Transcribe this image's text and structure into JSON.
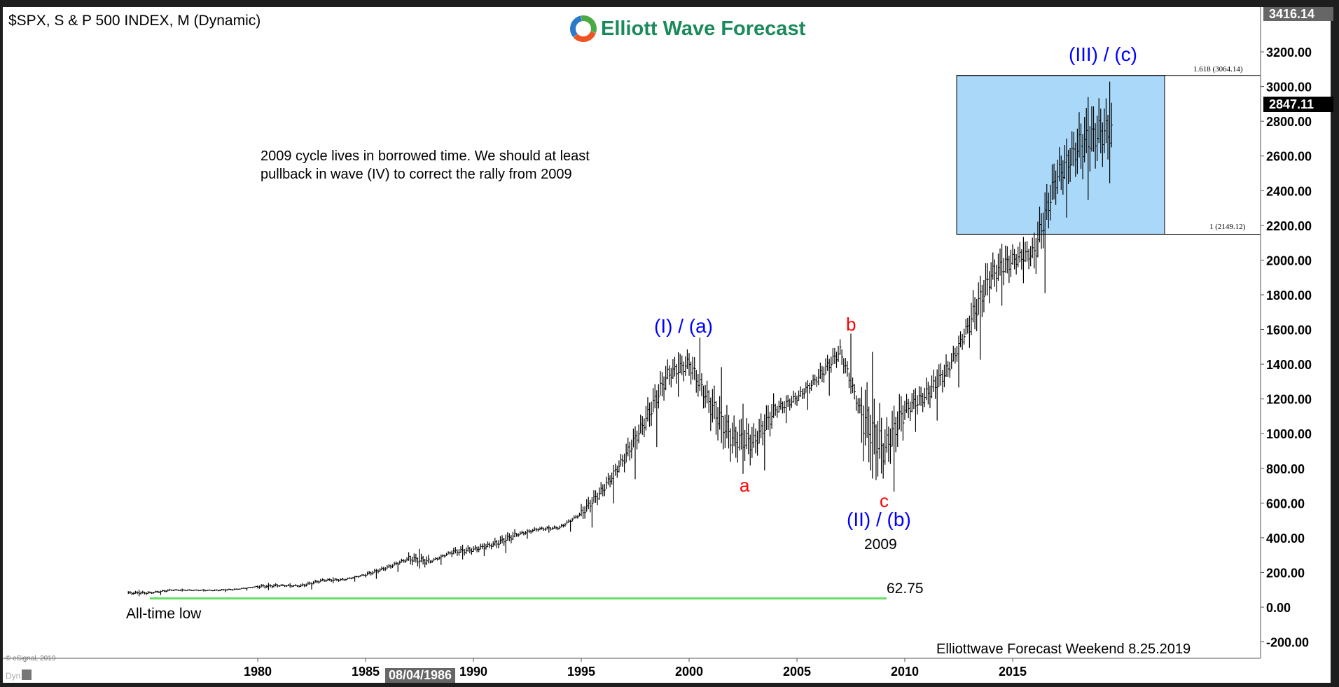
{
  "header": {
    "title": "$SPX, S & P 500 INDEX, M (Dynamic)",
    "logo_text": "Elliott Wave Forecast"
  },
  "footer": {
    "copyright": "© eSignal, 2019",
    "dyn_label": "Dyn",
    "signature": "Elliottwave Forecast Weekend  8.25.2019",
    "cursor_date": "08/04/1986"
  },
  "annotations": {
    "note_line1": "2009 cycle lives in borrowed time. We should at least",
    "note_line2": "pullback in wave (IV) to correct the rally from 2009",
    "wave_I": "(I) / (a)",
    "wave_a": "a",
    "wave_b": "b",
    "wave_c": "c",
    "wave_II": "(II) / (b)",
    "year_2009": "2009",
    "wave_III": "(III) / (c)",
    "low_value": "62.75",
    "low_label": "All-time low",
    "fib_1618": "1.618 (3064.14)",
    "fib_1": "1 (2149.12)"
  },
  "colors": {
    "wave_blue": "#0000ff",
    "wave_red": "#ff0000",
    "target_box": "#aad8f8",
    "low_line": "#66dd66",
    "logo_green": "#1a8a5a"
  },
  "chart_data": {
    "type": "bar",
    "subtype": "ohlc-monthly",
    "symbol": "$SPX",
    "ylim": [
      -200,
      3416.14
    ],
    "yticks": [
      "3200.00",
      "3000.00",
      "2800.00",
      "2600.00",
      "2400.00",
      "2200.00",
      "2000.00",
      "1800.00",
      "1600.00",
      "1400.00",
      "1200.00",
      "1000.00",
      "800.00",
      "600.00",
      "400.00",
      "200.00",
      "0.00",
      "-200.00"
    ],
    "xticks": [
      "1980",
      "1985",
      "1990",
      "1995",
      "2000",
      "2005",
      "2010",
      "2015"
    ],
    "axis_max_label": "3416.14",
    "last_price": "2847.11",
    "target_zone": {
      "low": 2149.12,
      "high": 3064.14
    },
    "all_time_low": 62.75,
    "yearly_ranges": [
      [
        1974,
        62.75,
        100
      ],
      [
        1975,
        70,
        95
      ],
      [
        1976,
        90,
        107
      ],
      [
        1977,
        90,
        105
      ],
      [
        1978,
        87,
        106
      ],
      [
        1979,
        96,
        110
      ],
      [
        1980,
        98,
        140
      ],
      [
        1981,
        112,
        138
      ],
      [
        1982,
        102,
        143
      ],
      [
        1983,
        138,
        172
      ],
      [
        1984,
        147,
        170
      ],
      [
        1985,
        163,
        212
      ],
      [
        1986,
        203,
        254
      ],
      [
        1987,
        223,
        336
      ],
      [
        1988,
        243,
        283
      ],
      [
        1989,
        275,
        360
      ],
      [
        1990,
        295,
        369
      ],
      [
        1991,
        311,
        418
      ],
      [
        1992,
        394,
        442
      ],
      [
        1993,
        429,
        471
      ],
      [
        1994,
        435,
        482
      ],
      [
        1995,
        459,
        621
      ],
      [
        1996,
        598,
        757
      ],
      [
        1997,
        737,
        983
      ],
      [
        1998,
        923,
        1241
      ],
      [
        1999,
        1212,
        1469
      ],
      [
        2000,
        1254,
        1553
      ],
      [
        2001,
        945,
        1383
      ],
      [
        2002,
        768,
        1172
      ],
      [
        2003,
        788,
        1112
      ],
      [
        2004,
        1060,
        1217
      ],
      [
        2005,
        1137,
        1275
      ],
      [
        2006,
        1219,
        1431
      ],
      [
        2007,
        1374,
        1576
      ],
      [
        2008,
        741,
        1471
      ],
      [
        2009,
        666,
        1130
      ],
      [
        2010,
        1010,
        1262
      ],
      [
        2011,
        1075,
        1370
      ],
      [
        2012,
        1266,
        1474
      ],
      [
        2013,
        1426,
        1849
      ],
      [
        2014,
        1737,
        2094
      ],
      [
        2015,
        1867,
        2134
      ],
      [
        2016,
        1810,
        2278
      ],
      [
        2017,
        2245,
        2694
      ],
      [
        2018,
        2346,
        2940
      ],
      [
        2019,
        2443,
        3028
      ]
    ]
  }
}
